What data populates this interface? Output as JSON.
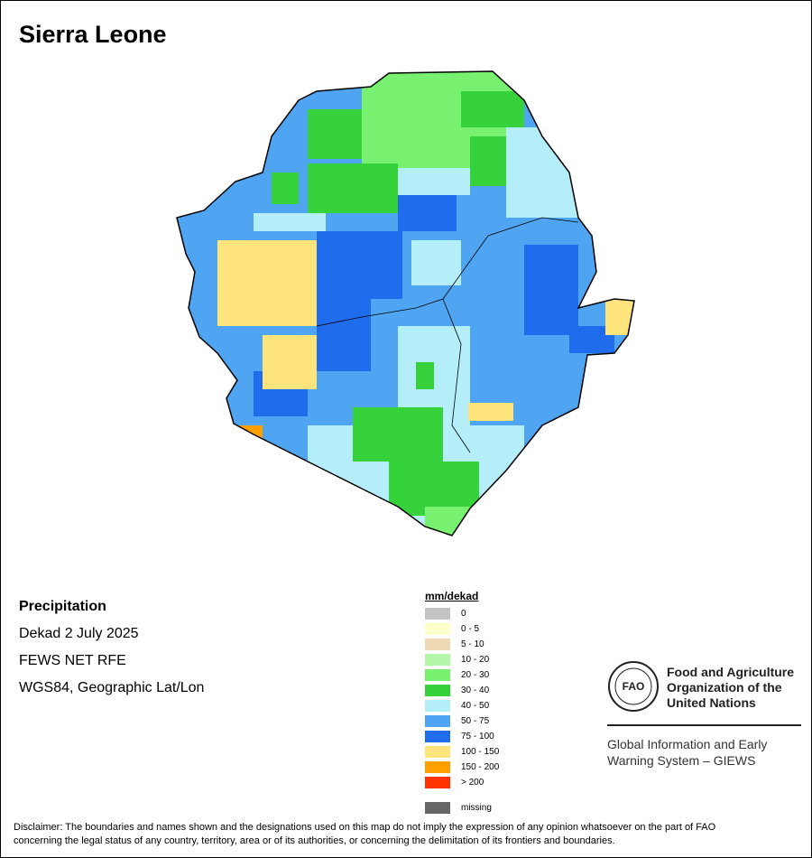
{
  "title": "Sierra Leone",
  "info": {
    "heading": "Precipitation",
    "period": "Dekad 2 July 2025",
    "source": "FEWS NET RFE",
    "projection": "WGS84, Geographic Lat/Lon"
  },
  "legend": {
    "title": "mm/dekad",
    "items": [
      {
        "label": "0",
        "color": "#c3c3c3"
      },
      {
        "label": "0 - 5",
        "color": "#ffffcc"
      },
      {
        "label": "5 - 10",
        "color": "#efd9b5"
      },
      {
        "label": "10 - 20",
        "color": "#b5f7a8"
      },
      {
        "label": "20 - 30",
        "color": "#78f070"
      },
      {
        "label": "30 - 40",
        "color": "#36d23c"
      },
      {
        "label": "40 - 50",
        "color": "#b3eef9"
      },
      {
        "label": "50 - 75",
        "color": "#4fa5f2"
      },
      {
        "label": "75 - 100",
        "color": "#1f6ded"
      },
      {
        "label": "100 - 150",
        "color": "#fee47a"
      },
      {
        "label": "150 - 200",
        "color": "#ffa000"
      },
      {
        "label": "> 200",
        "color": "#ff3300"
      }
    ],
    "missing": {
      "label": "missing",
      "color": "#666666"
    }
  },
  "org": {
    "logo_text": "FAO FIAT PANIS",
    "name_line1": "Food and Agriculture",
    "name_line2": "Organization of the",
    "name_line3": "United Nations",
    "system_line1": "Global Information and Early",
    "system_line2": "Warning System – GIEWS"
  },
  "disclaimer_line1": "Disclaimer: The boundaries and names shown and the designations used on this map do not imply the expression of any opinion whatsoever on the part of FAO",
  "disclaimer_line2": "concerning the legal status of any country, territory, area or of its authorities, or concerning the delimitation of its frontiers and boundaries."
}
